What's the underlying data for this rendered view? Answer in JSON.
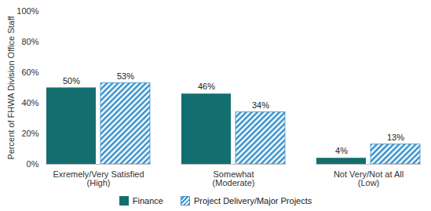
{
  "chart_data": {
    "type": "bar",
    "categories": [
      "Exremely/Very Satisfied (High)",
      "Somewhat (Moderate)",
      "Not Very/Not at All (Low)"
    ],
    "series": [
      {
        "name": "Finance",
        "color": "#136f6f",
        "values": [
          50,
          46,
          4
        ],
        "value_labels": [
          "50%",
          "46%",
          "4%"
        ]
      },
      {
        "name": "Project Delivery/Major Projects",
        "color": "#3c93cc",
        "values": [
          53,
          34,
          13
        ],
        "value_labels": [
          "53%",
          "34%",
          "13%"
        ]
      }
    ],
    "ylabel": "Percent of FHWA Division Office Staff",
    "ylim": [
      0,
      100
    ],
    "yticks": [
      {
        "value": 0,
        "label": "0%"
      },
      {
        "value": 20,
        "label": "20%"
      },
      {
        "value": 40,
        "label": "40%"
      },
      {
        "value": 60,
        "label": "60%"
      },
      {
        "value": 80,
        "label": "80%"
      },
      {
        "value": 100,
        "label": "100%"
      }
    ],
    "grid": false,
    "data_labels": true,
    "legend": "bottom"
  }
}
